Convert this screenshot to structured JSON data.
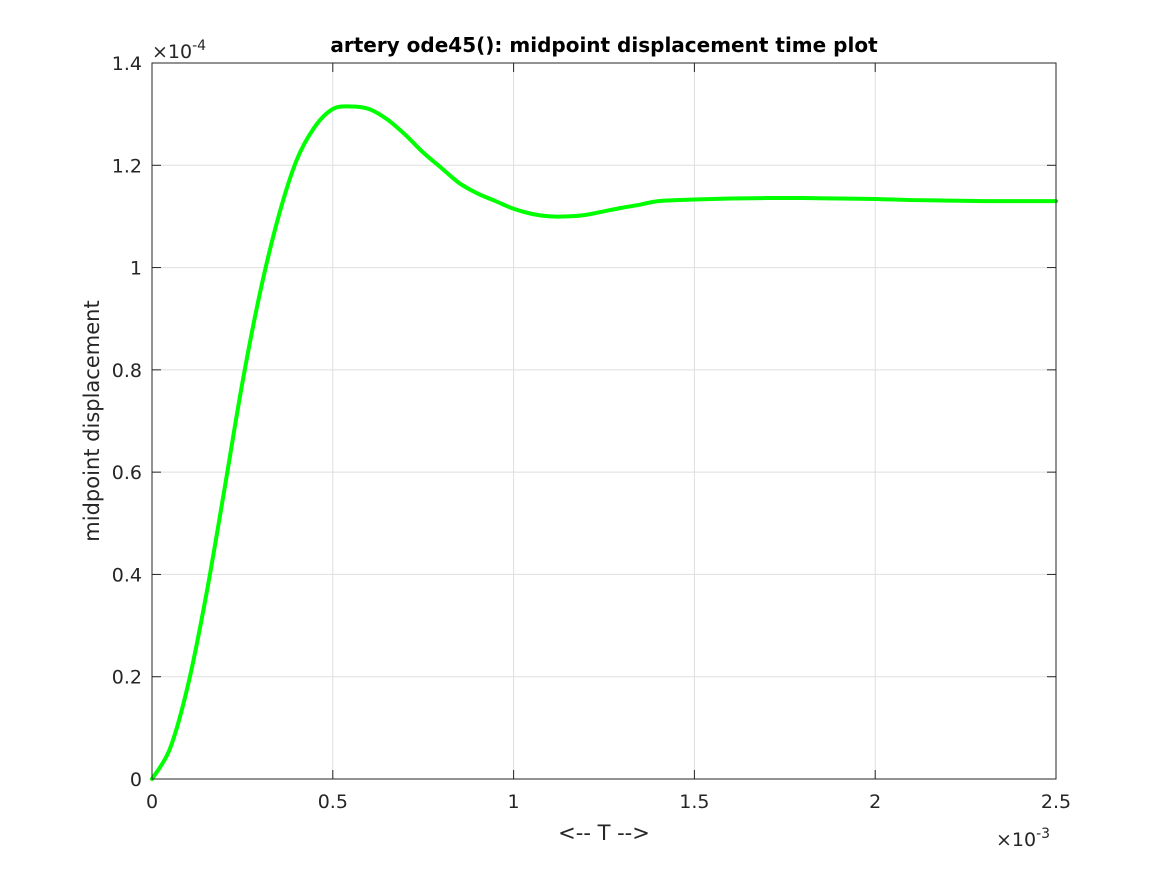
{
  "chart_data": {
    "type": "line",
    "title": "artery ode45(): midpoint displacement time plot",
    "xlabel": "<-- T -->",
    "ylabel": "midpoint displacement",
    "xlim": [
      0,
      0.0025
    ],
    "ylim": [
      0,
      0.00014
    ],
    "x_exponent_label": "×10",
    "x_exponent_power": "-3",
    "y_exponent_label": "×10",
    "y_exponent_power": "-4",
    "xticks": [
      0,
      0.0005,
      0.001,
      0.0015,
      0.002,
      0.0025
    ],
    "xtick_labels": [
      "0",
      "0.5",
      "1",
      "1.5",
      "2",
      "2.5"
    ],
    "yticks": [
      0,
      2e-05,
      4e-05,
      6e-05,
      8e-05,
      0.0001,
      0.00012,
      0.00014
    ],
    "ytick_labels": [
      "0",
      "0.2",
      "0.4",
      "0.6",
      "0.8",
      "1",
      "1.2",
      "1.4"
    ],
    "grid": true,
    "line_color": "#00ff00",
    "series": [
      {
        "x": [
          0,
          5e-05,
          0.0001,
          0.00015,
          0.0002,
          0.00025,
          0.0003,
          0.00035,
          0.0004,
          0.00045,
          0.0005,
          0.00055,
          0.0006,
          0.00065,
          0.0007,
          0.00075,
          0.0008,
          0.00085,
          0.0009,
          0.00095,
          0.001,
          0.00105,
          0.0011,
          0.00115,
          0.0012,
          0.00125,
          0.0013,
          0.00135,
          0.0014,
          0.0015,
          0.0016,
          0.0017,
          0.0018,
          0.0019,
          0.002,
          0.0021,
          0.0022,
          0.0023,
          0.0024,
          0.0025
        ],
        "y": [
          0,
          6e-06,
          1.85e-05,
          3.6e-05,
          5.65e-05,
          7.75e-05,
          9.55e-05,
          0.00011,
          0.000121,
          0.0001275,
          0.000131,
          0.0001315,
          0.000131,
          0.000129,
          0.000126,
          0.0001225,
          0.0001195,
          0.0001165,
          0.0001145,
          0.000113,
          0.0001115,
          0.0001105,
          0.00011,
          0.00011,
          0.0001103,
          0.000111,
          0.0001117,
          0.0001123,
          0.000113,
          0.0001133,
          0.0001135,
          0.0001136,
          0.0001136,
          0.0001135,
          0.0001134,
          0.0001132,
          0.0001131,
          0.000113,
          0.000113,
          0.000113
        ]
      }
    ]
  }
}
